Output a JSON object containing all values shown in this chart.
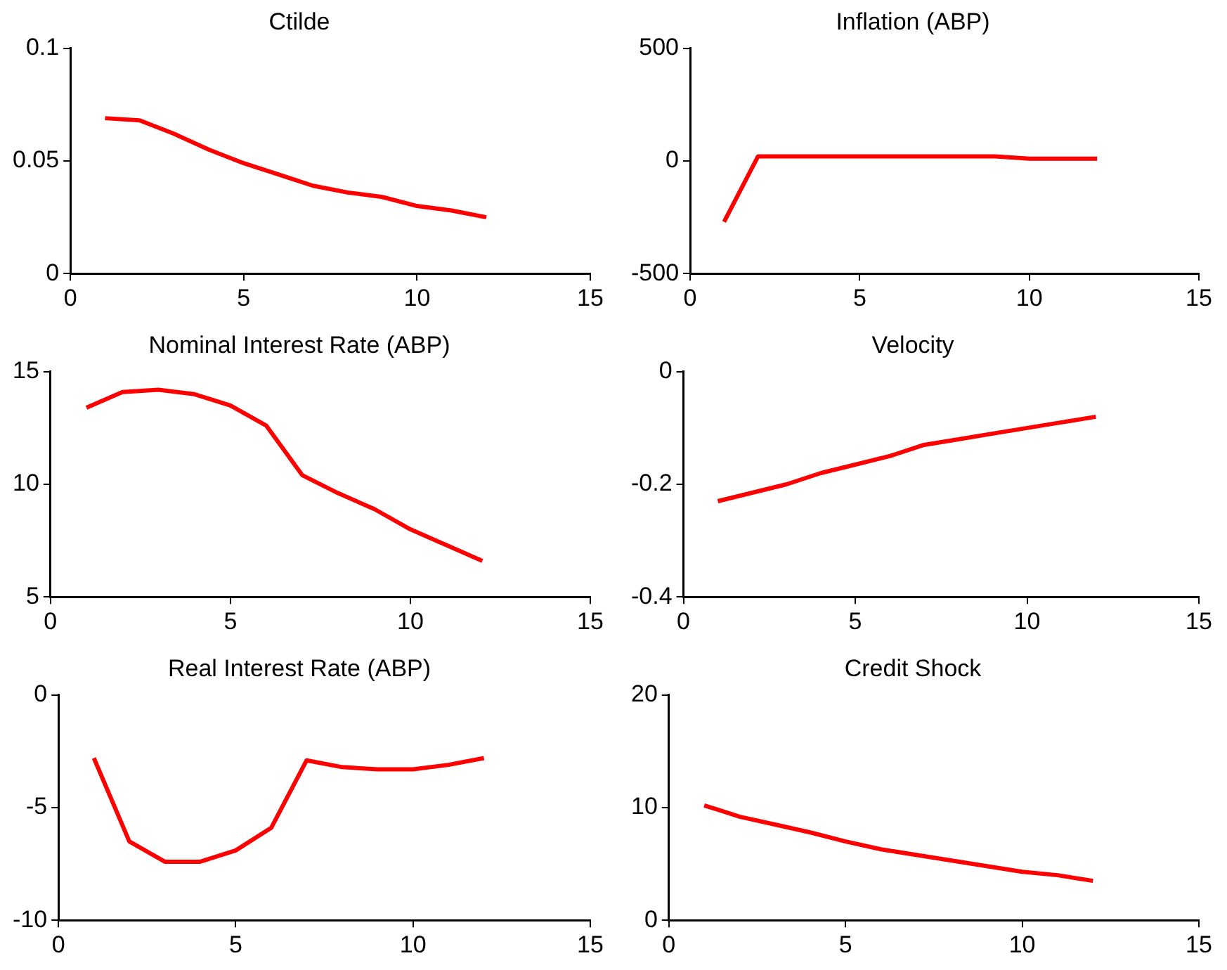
{
  "chart_data": [
    {
      "type": "line",
      "title": "Ctilde",
      "x": [
        1,
        2,
        3,
        4,
        5,
        6,
        7,
        8,
        9,
        10,
        11,
        12
      ],
      "xlim": [
        0,
        15
      ],
      "xticks": [
        0,
        5,
        10,
        15
      ],
      "ylim": [
        0,
        0.1
      ],
      "yticks": [
        0,
        0.05,
        0.1
      ],
      "grid": false,
      "legend": false,
      "series": [
        {
          "color": "#ff0000",
          "values": [
            0.069,
            0.068,
            0.062,
            0.055,
            0.049,
            0.044,
            0.039,
            0.036,
            0.034,
            0.03,
            0.028,
            0.025
          ]
        }
      ]
    },
    {
      "type": "line",
      "title": "Inflation (ABP)",
      "x": [
        1,
        2,
        3,
        4,
        5,
        6,
        7,
        8,
        9,
        10,
        11,
        12
      ],
      "xlim": [
        0,
        15
      ],
      "xticks": [
        0,
        5,
        10,
        15
      ],
      "ylim": [
        -500,
        500
      ],
      "yticks": [
        -500,
        0,
        500
      ],
      "grid": false,
      "legend": false,
      "series": [
        {
          "color": "#ff0000",
          "values": [
            -270,
            20,
            20,
            20,
            20,
            20,
            20,
            20,
            20,
            10,
            10,
            10
          ]
        }
      ]
    },
    {
      "type": "line",
      "title": "Nominal Interest Rate (ABP)",
      "x": [
        1,
        2,
        3,
        4,
        5,
        6,
        7,
        8,
        9,
        10,
        11,
        12
      ],
      "xlim": [
        0,
        15
      ],
      "xticks": [
        0,
        5,
        10,
        15
      ],
      "ylim": [
        5,
        15
      ],
      "yticks": [
        5,
        10,
        15
      ],
      "grid": false,
      "legend": false,
      "series": [
        {
          "color": "#ff0000",
          "values": [
            13.4,
            14.1,
            14.2,
            14.0,
            13.5,
            12.6,
            10.4,
            9.6,
            8.9,
            8.0,
            7.3,
            6.6
          ]
        }
      ]
    },
    {
      "type": "line",
      "title": "Velocity",
      "x": [
        1,
        2,
        3,
        4,
        5,
        6,
        7,
        8,
        9,
        10,
        11,
        12
      ],
      "xlim": [
        0,
        15
      ],
      "xticks": [
        0,
        5,
        10,
        15
      ],
      "ylim": [
        -0.4,
        0
      ],
      "yticks": [
        -0.4,
        -0.2,
        0
      ],
      "grid": false,
      "legend": false,
      "series": [
        {
          "color": "#ff0000",
          "values": [
            -0.23,
            -0.215,
            -0.2,
            -0.18,
            -0.165,
            -0.15,
            -0.13,
            -0.12,
            -0.11,
            -0.1,
            -0.09,
            -0.08
          ]
        }
      ]
    },
    {
      "type": "line",
      "title": "Real Interest Rate (ABP)",
      "x": [
        1,
        2,
        3,
        4,
        5,
        6,
        7,
        8,
        9,
        10,
        11,
        12
      ],
      "xlim": [
        0,
        15
      ],
      "xticks": [
        0,
        5,
        10,
        15
      ],
      "ylim": [
        -10,
        0
      ],
      "yticks": [
        -10,
        -5,
        0
      ],
      "grid": false,
      "legend": false,
      "series": [
        {
          "color": "#ff0000",
          "values": [
            -2.8,
            -6.5,
            -7.4,
            -7.4,
            -6.9,
            -5.9,
            -2.9,
            -3.2,
            -3.3,
            -3.3,
            -3.1,
            -2.8
          ]
        }
      ]
    },
    {
      "type": "line",
      "title": "Credit Shock",
      "x": [
        1,
        2,
        3,
        4,
        5,
        6,
        7,
        8,
        9,
        10,
        11,
        12
      ],
      "xlim": [
        0,
        15
      ],
      "xticks": [
        0,
        5,
        10,
        15
      ],
      "ylim": [
        0,
        20
      ],
      "yticks": [
        0,
        10,
        20
      ],
      "grid": false,
      "legend": false,
      "series": [
        {
          "color": "#ff0000",
          "values": [
            10.2,
            9.2,
            8.5,
            7.8,
            7.0,
            6.3,
            5.8,
            5.3,
            4.8,
            4.3,
            4.0,
            3.5
          ]
        }
      ]
    }
  ]
}
